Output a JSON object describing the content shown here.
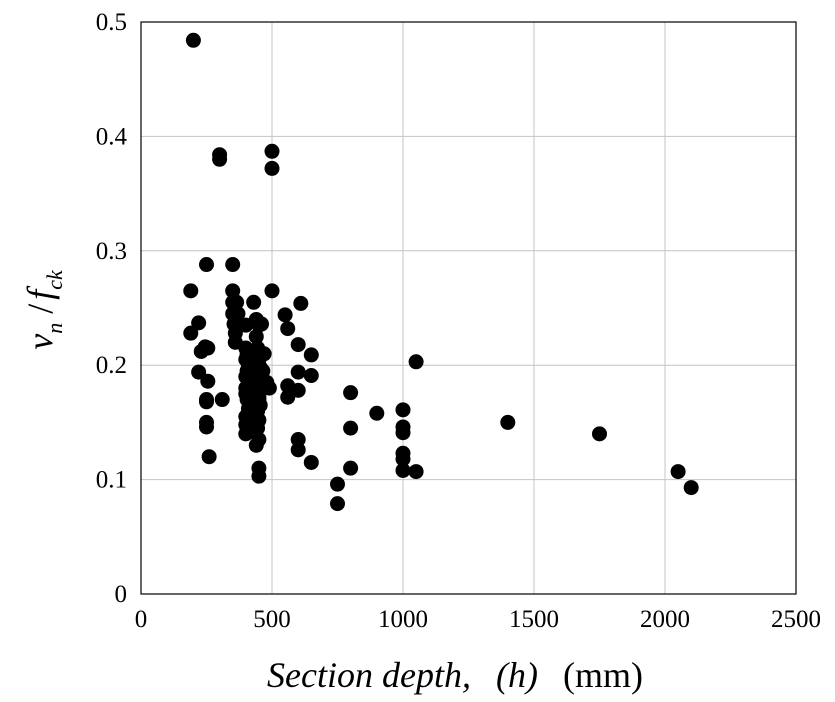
{
  "chart_data": {
    "type": "scatter",
    "title": "",
    "xlabel_parts": [
      "Section depth,",
      "(h)",
      "(mm)"
    ],
    "ylabel_parts": [
      "v",
      "n",
      " /",
      "f",
      "ck"
    ],
    "xlim": [
      0,
      2500
    ],
    "ylim": [
      0,
      0.5
    ],
    "xticks": [
      "0",
      "500",
      "1000",
      "1500",
      "2000",
      "2500"
    ],
    "yticks": [
      "0",
      "0.1",
      "0.2",
      "0.3",
      "0.4",
      "0.5"
    ],
    "grid": true,
    "legend": "none",
    "marker_color": "#000000",
    "x": [
      200,
      190,
      190,
      220,
      230,
      220,
      250,
      245,
      255,
      250,
      250,
      250,
      250,
      260,
      255,
      300,
      300,
      310,
      350,
      350,
      350,
      350,
      355,
      360,
      360,
      365,
      370,
      400,
      400,
      400,
      405,
      410,
      400,
      400,
      405,
      410,
      400,
      400,
      400,
      405,
      410,
      400,
      430,
      440,
      450,
      440,
      445,
      450,
      455,
      450,
      460,
      445,
      450,
      455,
      440,
      450,
      445,
      450,
      440,
      450,
      450,
      455,
      450,
      445,
      460,
      470,
      465,
      480,
      470,
      500,
      500,
      500,
      490,
      550,
      560,
      560,
      570,
      560,
      600,
      600,
      600,
      610,
      600,
      600,
      650,
      650,
      650,
      750,
      750,
      800,
      800,
      800,
      900,
      1000,
      1000,
      1000,
      1000,
      1000,
      1000,
      1050,
      1050,
      1400,
      1750,
      2050,
      2100
    ],
    "y": [
      0.484,
      0.265,
      0.228,
      0.237,
      0.212,
      0.194,
      0.288,
      0.216,
      0.186,
      0.17,
      0.168,
      0.15,
      0.146,
      0.12,
      0.215,
      0.384,
      0.38,
      0.17,
      0.288,
      0.265,
      0.255,
      0.245,
      0.236,
      0.228,
      0.22,
      0.255,
      0.245,
      0.235,
      0.215,
      0.205,
      0.195,
      0.188,
      0.18,
      0.175,
      0.17,
      0.162,
      0.155,
      0.148,
      0.14,
      0.21,
      0.2,
      0.19,
      0.255,
      0.24,
      0.235,
      0.225,
      0.215,
      0.205,
      0.198,
      0.19,
      0.185,
      0.178,
      0.172,
      0.165,
      0.16,
      0.152,
      0.145,
      0.135,
      0.13,
      0.11,
      0.103,
      0.18,
      0.17,
      0.16,
      0.236,
      0.21,
      0.195,
      0.185,
      0.18,
      0.265,
      0.387,
      0.372,
      0.18,
      0.244,
      0.232,
      0.182,
      0.178,
      0.172,
      0.218,
      0.194,
      0.178,
      0.254,
      0.135,
      0.126,
      0.209,
      0.191,
      0.115,
      0.096,
      0.079,
      0.176,
      0.145,
      0.11,
      0.158,
      0.161,
      0.146,
      0.141,
      0.123,
      0.118,
      0.108,
      0.203,
      0.107,
      0.15,
      0.14,
      0.107,
      0.093
    ]
  }
}
